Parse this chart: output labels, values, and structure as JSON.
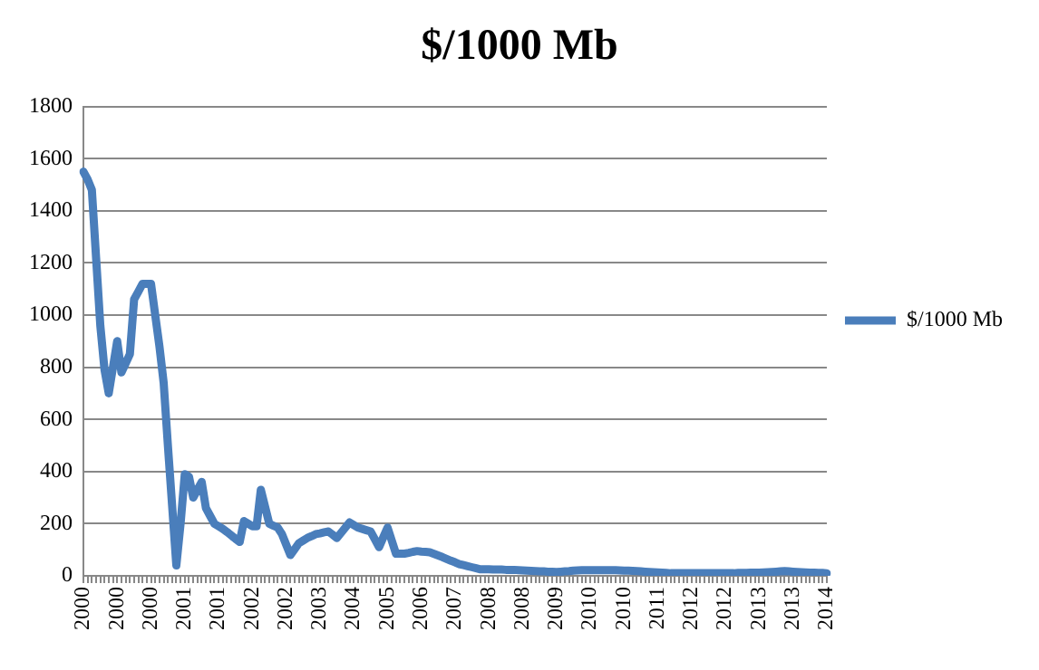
{
  "chart_data": {
    "type": "line",
    "title": "$/1000 Mb",
    "categories": [
      "2000",
      null,
      null,
      null,
      null,
      null,
      null,
      null,
      "2000",
      null,
      null,
      null,
      null,
      null,
      null,
      null,
      "2000",
      null,
      null,
      null,
      null,
      null,
      null,
      null,
      "2001",
      null,
      null,
      null,
      null,
      null,
      null,
      null,
      "2001",
      null,
      null,
      null,
      null,
      null,
      null,
      null,
      "2002",
      null,
      null,
      null,
      null,
      null,
      null,
      null,
      "2002",
      null,
      null,
      null,
      null,
      null,
      null,
      null,
      "2003",
      null,
      null,
      null,
      null,
      null,
      null,
      null,
      "2004",
      null,
      null,
      null,
      null,
      null,
      null,
      null,
      "2005",
      null,
      null,
      null,
      null,
      null,
      null,
      null,
      "2006",
      null,
      null,
      null,
      null,
      null,
      null,
      null,
      "2007",
      null,
      null,
      null,
      null,
      null,
      null,
      null,
      "2008",
      null,
      null,
      null,
      null,
      null,
      null,
      null,
      "2008",
      null,
      null,
      null,
      null,
      null,
      null,
      null,
      "2009",
      null,
      null,
      null,
      null,
      null,
      null,
      null,
      "2010",
      null,
      null,
      null,
      null,
      null,
      null,
      null,
      "2010",
      null,
      null,
      null,
      null,
      null,
      null,
      null,
      "2011",
      null,
      null,
      null,
      null,
      null,
      null,
      null,
      "2012",
      null,
      null,
      null,
      null,
      null,
      null,
      null,
      "2012",
      null,
      null,
      null,
      null,
      null,
      null,
      null,
      "2013",
      null,
      null,
      null,
      null,
      null,
      null,
      null,
      "2013",
      null,
      null,
      null,
      null,
      null,
      null,
      null,
      "2014"
    ],
    "series": [
      {
        "name": "$/1000 Mb",
        "color": "#4a7ebb",
        "values": [
          1550,
          1520,
          1480,
          1220,
          960,
          790,
          700,
          800,
          900,
          780,
          815,
          850,
          1060,
          1090,
          1120,
          1120,
          1120,
          1000,
          880,
          740,
          500,
          270,
          40,
          200,
          390,
          380,
          300,
          330,
          360,
          260,
          230,
          200,
          190,
          180,
          168,
          155,
          142,
          130,
          210,
          200,
          190,
          190,
          330,
          265,
          200,
          192,
          185,
          160,
          120,
          80,
          102,
          125,
          135,
          145,
          152,
          160,
          163,
          167,
          170,
          158,
          145,
          165,
          185,
          205,
          195,
          185,
          180,
          175,
          170,
          140,
          110,
          148,
          185,
          135,
          85,
          85,
          85,
          88,
          92,
          95,
          93,
          92,
          90,
          84,
          78,
          72,
          65,
          58,
          52,
          45,
          41,
          37,
          33,
          29,
          25,
          25,
          25,
          24,
          24,
          24,
          23,
          23,
          23,
          22,
          21,
          20,
          19,
          18,
          17,
          17,
          16,
          16,
          15,
          16,
          17,
          18,
          20,
          21,
          22,
          22,
          22,
          22,
          22,
          22,
          22,
          22,
          22,
          21,
          20,
          20,
          19,
          18,
          17,
          16,
          15,
          14,
          13,
          12,
          11,
          10,
          10,
          10,
          10,
          10,
          10,
          10,
          10,
          10,
          10,
          10,
          10,
          10,
          10,
          10,
          10,
          11,
          11,
          11,
          12,
          12,
          12,
          13,
          14,
          15,
          16,
          17,
          18,
          17,
          16,
          15,
          14,
          13,
          12,
          12,
          11,
          11,
          10
        ]
      }
    ],
    "ylim": [
      0,
      1800
    ],
    "yticks": [
      0,
      200,
      400,
      600,
      800,
      1000,
      1200,
      1400,
      1600,
      1800
    ],
    "grid": "y",
    "legend": "right",
    "marker": "none",
    "line_style": "solid"
  }
}
